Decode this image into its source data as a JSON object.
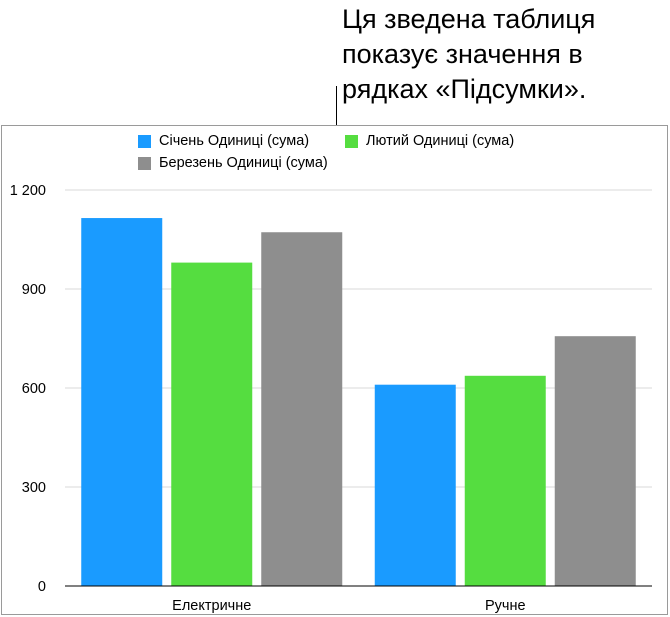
{
  "callout": {
    "text": "Ця зведена таблиця\nпоказує значення в\nрядках «Підсумки»."
  },
  "colors": {
    "series": [
      "#1a9bff",
      "#55dd40",
      "#8e8e8e"
    ],
    "grid": "#d9d9d9",
    "axis": "#000000"
  },
  "chart_data": {
    "type": "bar",
    "categories": [
      "Електричне",
      "Ручне"
    ],
    "series": [
      {
        "name": "Січень Одиниці (сума)",
        "values": [
          1115,
          610
        ]
      },
      {
        "name": "Лютий Одиниці (сума)",
        "values": [
          980,
          637
        ]
      },
      {
        "name": "Березень Одиниці (сума)",
        "values": [
          1072,
          757
        ]
      }
    ],
    "ylim": [
      0,
      1200
    ],
    "yticks": [
      0,
      300,
      600,
      900,
      1200
    ],
    "ytick_labels": [
      "0",
      "300",
      "600",
      "900",
      "1 200"
    ],
    "grid": true,
    "legend_position": "top"
  }
}
